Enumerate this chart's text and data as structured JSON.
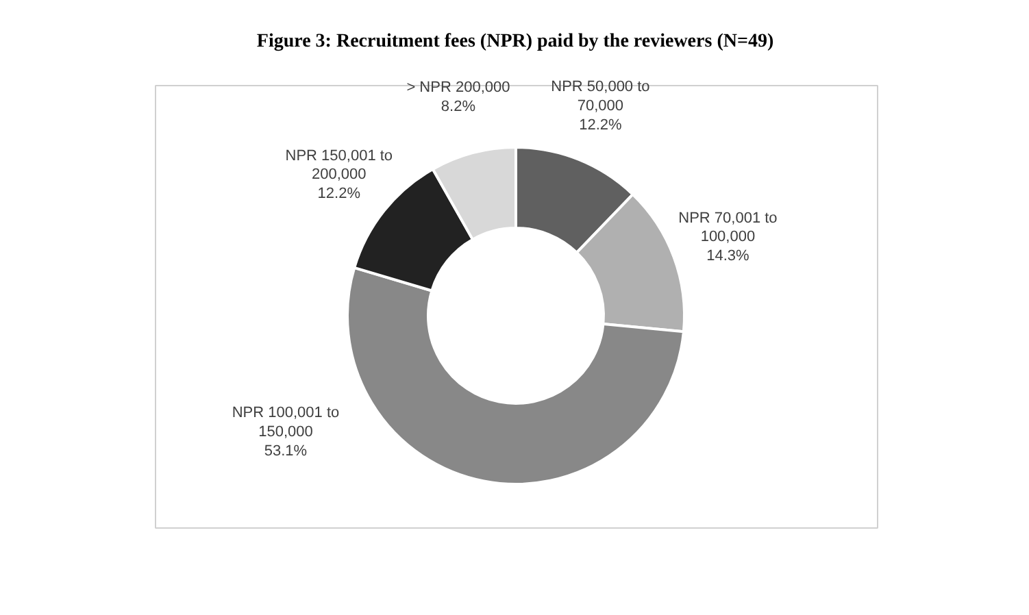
{
  "chart_data": {
    "type": "donut",
    "title": "Figure 3: Recruitment fees (NPR) paid by the reviewers (N=49)",
    "categories": [
      "NPR 50,000 to 70,000",
      "NPR 70,001 to 100,000",
      "NPR 100,001 to 150,000",
      "NPR 150,001 to 200,000",
      "> NPR 200,000"
    ],
    "values": [
      12.2,
      14.3,
      53.1,
      12.2,
      8.2
    ],
    "colors": [
      "#606060",
      "#b0b0b0",
      "#888888",
      "#222222",
      "#d8d8d8"
    ],
    "value_labels": [
      "12.2%",
      "14.3%",
      "53.1%",
      "12.2%",
      "8.2%"
    ]
  }
}
